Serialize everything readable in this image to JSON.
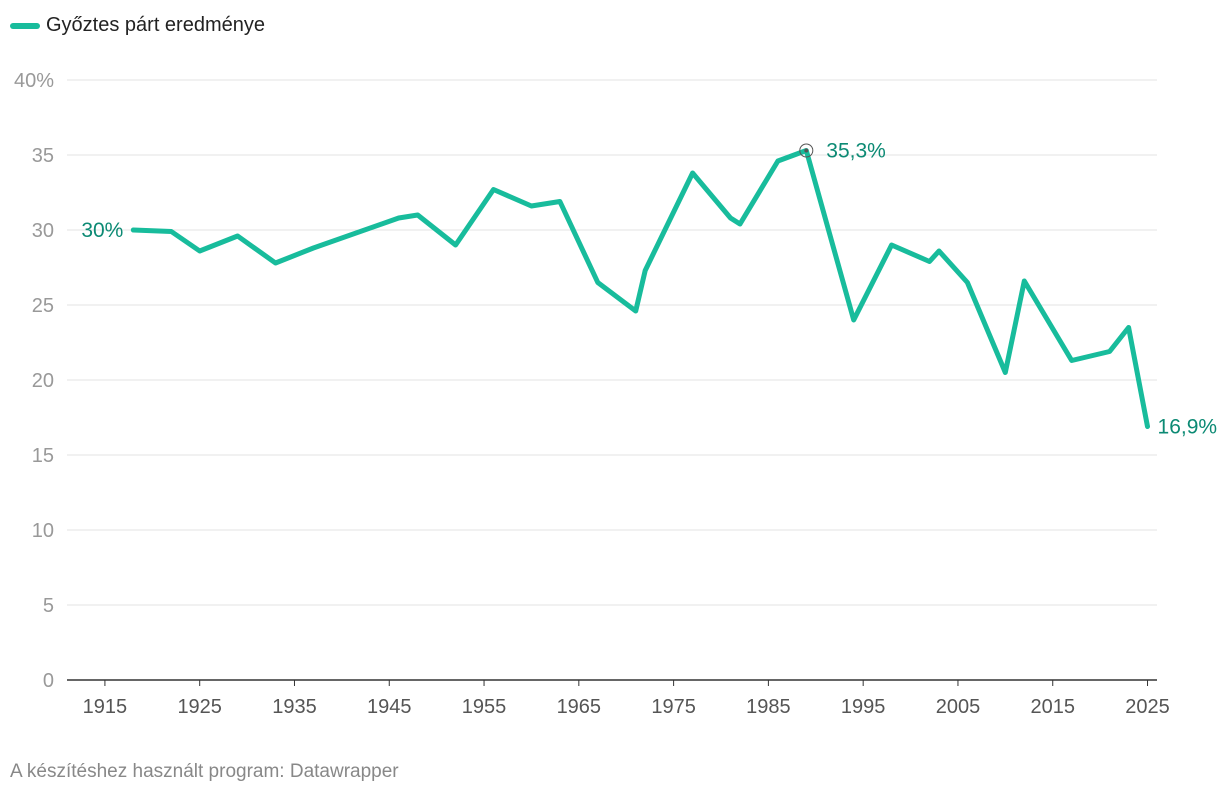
{
  "chart_data": {
    "type": "line",
    "legend": {
      "label": "Győztes párt eredménye",
      "position": "top-left"
    },
    "series": [
      {
        "name": "Győztes párt eredménye",
        "color": "#18bc9c",
        "points": [
          [
            1918,
            30.0
          ],
          [
            1922,
            29.9
          ],
          [
            1925,
            28.6
          ],
          [
            1929,
            29.6
          ],
          [
            1933,
            27.8
          ],
          [
            1937,
            28.8
          ],
          [
            1946,
            30.8
          ],
          [
            1948,
            31.0
          ],
          [
            1952,
            29.0
          ],
          [
            1956,
            32.7
          ],
          [
            1960,
            31.6
          ],
          [
            1963,
            31.9
          ],
          [
            1967,
            26.5
          ],
          [
            1971,
            24.6
          ],
          [
            1972,
            27.3
          ],
          [
            1977,
            33.8
          ],
          [
            1981,
            30.8
          ],
          [
            1982,
            30.4
          ],
          [
            1986,
            34.6
          ],
          [
            1989,
            35.3
          ],
          [
            1994,
            24.0
          ],
          [
            1998,
            29.0
          ],
          [
            2002,
            27.9
          ],
          [
            2003,
            28.6
          ],
          [
            2006,
            26.5
          ],
          [
            2010,
            20.5
          ],
          [
            2012,
            26.6
          ],
          [
            2017,
            21.3
          ],
          [
            2021,
            21.9
          ],
          [
            2023,
            23.5
          ],
          [
            2025,
            16.9
          ]
        ]
      }
    ],
    "annotations": [
      {
        "x": 1918,
        "y": 30.0,
        "text": "30%",
        "side": "left"
      },
      {
        "x": 1989,
        "y": 35.3,
        "text": "35,3%",
        "side": "right",
        "marker": true
      },
      {
        "x": 2025,
        "y": 16.9,
        "text": "16,9%",
        "side": "right"
      }
    ],
    "xlim": [
      1911,
      2026
    ],
    "ylim": [
      0,
      40
    ],
    "yticks": [
      0,
      5,
      10,
      15,
      20,
      25,
      30,
      35,
      40
    ],
    "ytick_labels": [
      "0",
      "5",
      "10",
      "15",
      "20",
      "25",
      "30",
      "35",
      "40%"
    ],
    "xticks": [
      1915,
      1925,
      1935,
      1945,
      1955,
      1965,
      1975,
      1985,
      1995,
      2005,
      2015,
      2025
    ],
    "xtick_labels": [
      "1915",
      "1925",
      "1935",
      "1945",
      "1955",
      "1965",
      "1975",
      "1985",
      "1995",
      "2005",
      "2015",
      "2025"
    ],
    "grid": true,
    "annotation_color": "#0c8a74",
    "axis_label_color": "#999999",
    "grid_color": "#e3e3e3"
  },
  "footer": {
    "text": "A készítéshez használt program: Datawrapper"
  }
}
